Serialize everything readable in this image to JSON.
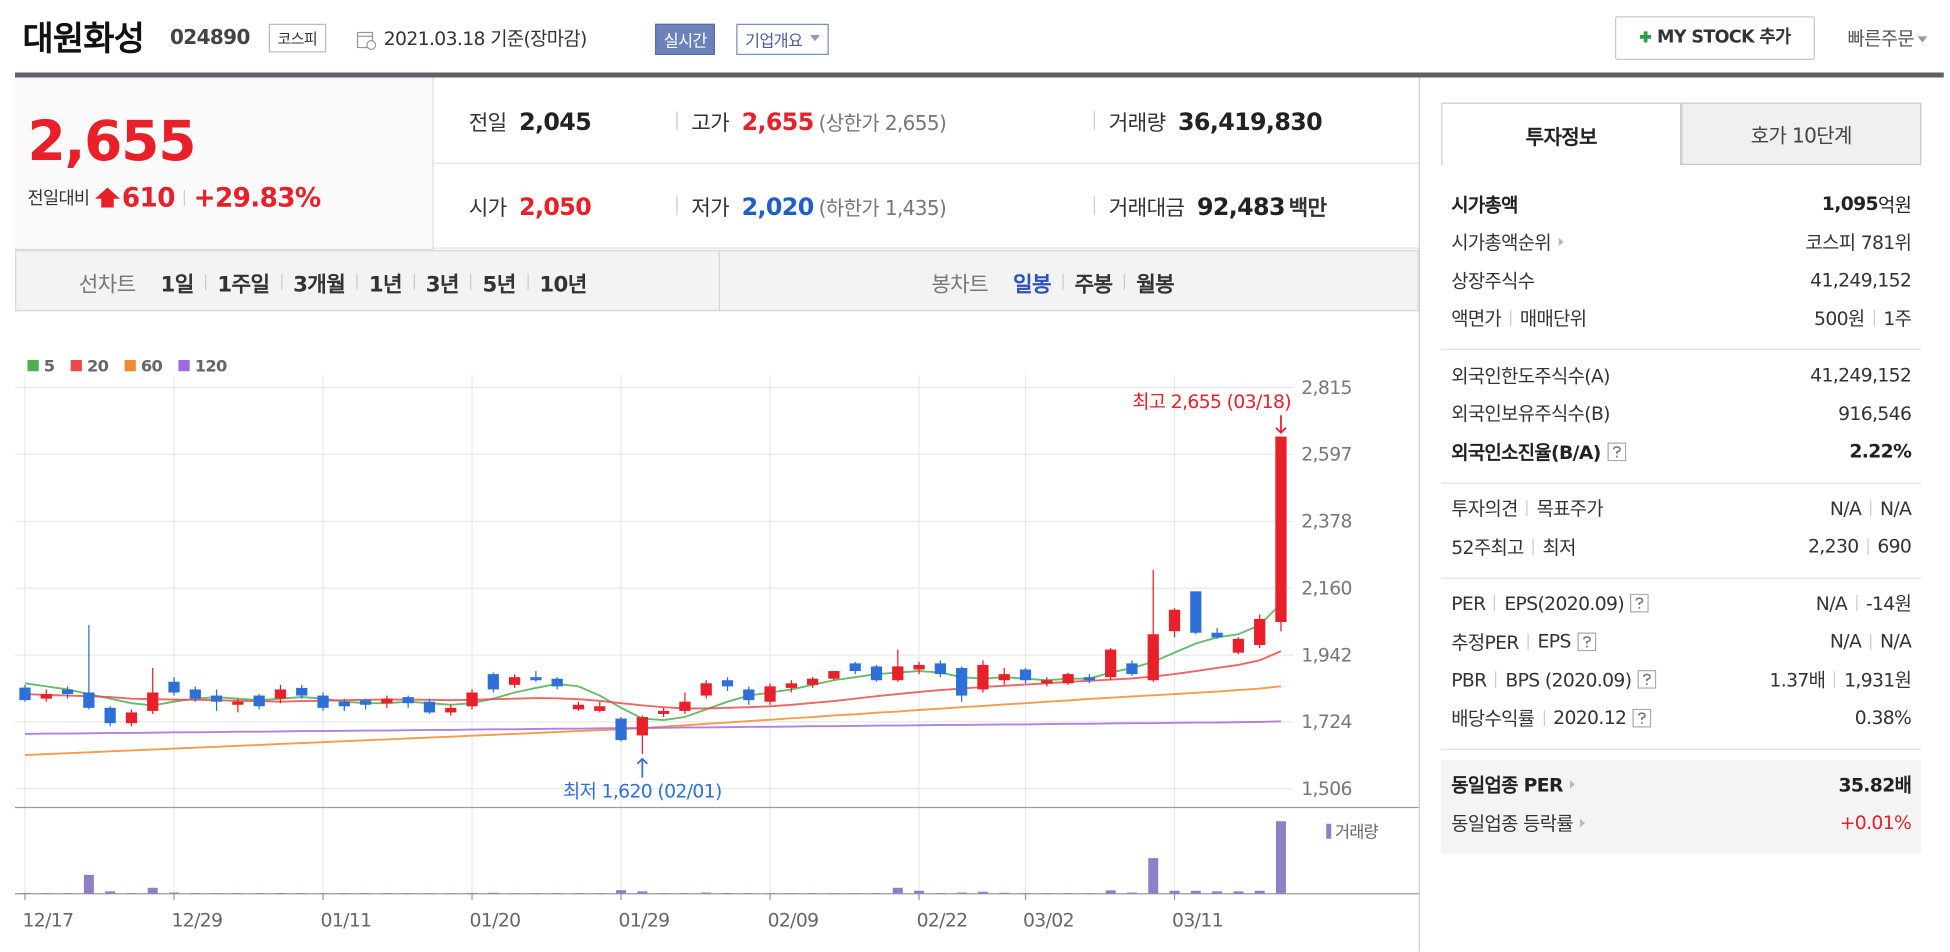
{
  "header": {
    "name": "대원화성",
    "code": "024890",
    "market": "코스피",
    "date": "2021.03.18 기준(장마감)",
    "realtime": "실시간",
    "company": "기업개요",
    "mystock": "MY STOCK 추가",
    "quick_order": "빠른주문"
  },
  "quote": {
    "price": "2,655",
    "change_label": "전일대비",
    "change": "610",
    "change_pct": "+29.83%",
    "rows": [
      [
        {
          "label": "전일",
          "value": "2,045",
          "color": "#222"
        },
        {
          "label": "고가",
          "value": "2,655",
          "color": "#e8202a",
          "note": "(상한가 2,655)"
        },
        {
          "label": "거래량",
          "value": "36,419,830",
          "color": "#222"
        }
      ],
      [
        {
          "label": "시가",
          "value": "2,050",
          "color": "#e8202a"
        },
        {
          "label": "저가",
          "value": "2,020",
          "color": "#1f5fc8",
          "note": "(하한가 1,435)"
        },
        {
          "label": "거래대금",
          "value": "92,483",
          "color": "#222",
          "unit": "백만"
        }
      ]
    ]
  },
  "line_periods": {
    "label": "선차트",
    "items": [
      "1일",
      "1주일",
      "3개월",
      "1년",
      "3년",
      "5년",
      "10년"
    ]
  },
  "candle_periods": {
    "label": "봉차트",
    "items": [
      "일봉",
      "주봉",
      "월봉"
    ],
    "selected_index": 0
  },
  "chart_data": {
    "type": "candlestick",
    "categories": [
      "12/17",
      null,
      null,
      null,
      null,
      null,
      null,
      "12/29",
      null,
      null,
      null,
      null,
      null,
      null,
      "01/11",
      null,
      null,
      null,
      null,
      null,
      null,
      "01/20",
      null,
      null,
      null,
      null,
      null,
      null,
      "01/29",
      null,
      null,
      null,
      null,
      null,
      null,
      "02/09",
      null,
      null,
      null,
      null,
      null,
      null,
      "02/22",
      null,
      null,
      null,
      null,
      "03/02",
      null,
      null,
      null,
      null,
      null,
      null,
      "03/11",
      null,
      null,
      null,
      null,
      null
    ],
    "open": [
      1836,
      1800,
      1830,
      1820,
      1770,
      1720,
      1760,
      1855,
      1830,
      1810,
      1780,
      1810,
      1800,
      1835,
      1810,
      1790,
      1795,
      1785,
      1805,
      1790,
      1755,
      1775,
      1880,
      1845,
      1870,
      1865,
      1765,
      1760,
      1735,
      1680,
      1750,
      1760,
      1810,
      1860,
      1830,
      1790,
      1835,
      1845,
      1865,
      1915,
      1905,
      1860,
      1895,
      1915,
      1900,
      1830,
      1860,
      1895,
      1850,
      1850,
      1870,
      1870,
      1915,
      1860,
      2020,
      2150,
      2015,
      1950,
      1975,
      2050
    ],
    "high": [
      1845,
      1830,
      1840,
      2040,
      1775,
      1765,
      1900,
      1870,
      1840,
      1830,
      1800,
      1815,
      1845,
      1845,
      1820,
      1800,
      1800,
      1810,
      1810,
      1800,
      1780,
      1830,
      1885,
      1880,
      1890,
      1870,
      1790,
      1790,
      1740,
      1745,
      1770,
      1820,
      1860,
      1870,
      1840,
      1850,
      1860,
      1870,
      1890,
      1920,
      1910,
      1960,
      1920,
      1925,
      1905,
      1925,
      1900,
      1900,
      1870,
      1885,
      1880,
      1965,
      1925,
      2220,
      2095,
      2150,
      2030,
      2000,
      2075,
      2655
    ],
    "low": [
      1790,
      1790,
      1800,
      1765,
      1710,
      1710,
      1750,
      1810,
      1790,
      1760,
      1755,
      1765,
      1785,
      1800,
      1760,
      1760,
      1765,
      1770,
      1770,
      1750,
      1745,
      1765,
      1820,
      1835,
      1855,
      1830,
      1760,
      1755,
      1660,
      1620,
      1740,
      1750,
      1800,
      1825,
      1780,
      1780,
      1820,
      1835,
      1860,
      1880,
      1855,
      1855,
      1880,
      1870,
      1790,
      1820,
      1845,
      1850,
      1840,
      1845,
      1850,
      1860,
      1875,
      1855,
      2000,
      2010,
      1995,
      1945,
      1965,
      2020
    ],
    "close": [
      1795,
      1815,
      1815,
      1770,
      1720,
      1755,
      1820,
      1820,
      1800,
      1790,
      1790,
      1775,
      1830,
      1810,
      1770,
      1775,
      1780,
      1800,
      1785,
      1755,
      1770,
      1820,
      1830,
      1870,
      1860,
      1840,
      1780,
      1775,
      1665,
      1740,
      1760,
      1790,
      1850,
      1840,
      1795,
      1840,
      1850,
      1865,
      1890,
      1890,
      1860,
      1905,
      1910,
      1880,
      1810,
      1910,
      1880,
      1860,
      1860,
      1880,
      1860,
      1960,
      1880,
      2010,
      2090,
      2015,
      2000,
      1995,
      2060,
      2655
    ],
    "up_color": "#e8202a",
    "down_color": "#2f6fd8",
    "series": [
      {
        "name": "5",
        "color": "#4caf50",
        "values": [
          1850,
          1840,
          1830,
          1815,
          1800,
          1785,
          1778,
          1790,
          1800,
          1805,
          1800,
          1795,
          1800,
          1805,
          1800,
          1790,
          1785,
          1785,
          1790,
          1785,
          1780,
          1785,
          1800,
          1820,
          1835,
          1848,
          1840,
          1810,
          1770,
          1735,
          1730,
          1740,
          1765,
          1790,
          1810,
          1820,
          1830,
          1845,
          1860,
          1870,
          1880,
          1885,
          1890,
          1885,
          1870,
          1865,
          1870,
          1865,
          1860,
          1865,
          1865,
          1885,
          1900,
          1920,
          1950,
          1980,
          2000,
          2010,
          2040,
          2110
        ]
      },
      {
        "name": "20",
        "color": "#ea4a4a",
        "values": [
          1815,
          1812,
          1810,
          1808,
          1805,
          1800,
          1798,
          1797,
          1796,
          1795,
          1793,
          1792,
          1790,
          1792,
          1793,
          1795,
          1796,
          1797,
          1797,
          1796,
          1795,
          1796,
          1798,
          1800,
          1802,
          1801,
          1798,
          1793,
          1785,
          1778,
          1772,
          1768,
          1768,
          1770,
          1772,
          1775,
          1780,
          1786,
          1792,
          1800,
          1808,
          1815,
          1822,
          1828,
          1833,
          1838,
          1842,
          1846,
          1850,
          1855,
          1858,
          1862,
          1866,
          1872,
          1880,
          1890,
          1900,
          1910,
          1925,
          1955
        ]
      },
      {
        "name": "60",
        "color": "#f28a30",
        "values": [
          1616,
          1619,
          1622,
          1625,
          1628,
          1631,
          1634,
          1637,
          1640,
          1643,
          1646,
          1649,
          1652,
          1655,
          1658,
          1661,
          1664,
          1667,
          1670,
          1673,
          1676,
          1679,
          1682,
          1685,
          1688,
          1691,
          1694,
          1697,
          1700,
          1704,
          1709,
          1713,
          1718,
          1722,
          1727,
          1731,
          1736,
          1740,
          1745,
          1749,
          1754,
          1758,
          1763,
          1767,
          1772,
          1776,
          1781,
          1785,
          1790,
          1794,
          1799,
          1803,
          1807,
          1811,
          1815,
          1819,
          1823,
          1828,
          1833,
          1840
        ]
      },
      {
        "name": "120",
        "color": "#a16ae0",
        "values": [
          1685,
          1686,
          1686,
          1687,
          1688,
          1688,
          1689,
          1690,
          1690,
          1691,
          1692,
          1692,
          1693,
          1694,
          1694,
          1695,
          1696,
          1696,
          1697,
          1698,
          1698,
          1699,
          1700,
          1700,
          1701,
          1702,
          1702,
          1703,
          1704,
          1704,
          1705,
          1706,
          1706,
          1707,
          1708,
          1708,
          1709,
          1710,
          1710,
          1711,
          1712,
          1712,
          1713,
          1714,
          1714,
          1715,
          1716,
          1716,
          1717,
          1718,
          1718,
          1719,
          1720,
          1720,
          1721,
          1722,
          1722,
          1723,
          1724,
          1726
        ]
      }
    ],
    "volume": {
      "name": "거래량",
      "color": "#8f7fc6",
      "values": [
        400000,
        300000,
        300000,
        9500000,
        1200000,
        400000,
        3000000,
        600000,
        400000,
        300000,
        300000,
        300000,
        400000,
        300000,
        300000,
        300000,
        300000,
        300000,
        300000,
        300000,
        300000,
        400000,
        500000,
        300000,
        300000,
        300000,
        300000,
        300000,
        1800000,
        1200000,
        300000,
        300000,
        600000,
        400000,
        300000,
        300000,
        300000,
        300000,
        300000,
        300000,
        300000,
        3000000,
        1500000,
        400000,
        600000,
        1000000,
        500000,
        300000,
        300000,
        300000,
        300000,
        1700000,
        600000,
        17900000,
        1500000,
        1500000,
        1200000,
        1200000,
        1500000,
        36419830
      ]
    },
    "ylim": [
      1506,
      2815
    ],
    "yticks": [
      {
        "value": 2815,
        "label": "2,815"
      },
      {
        "value": 2597,
        "label": "2,597"
      },
      {
        "value": 2378,
        "label": "2,378"
      },
      {
        "value": 2160,
        "label": "2,160"
      },
      {
        "value": 1942,
        "label": "1,942"
      },
      {
        "value": 1724,
        "label": "1,724"
      },
      {
        "value": 1506,
        "label": "1,506"
      }
    ],
    "grid": true,
    "high_annotation": "최고 2,655 (03/18)",
    "low_annotation": "최저 1,620 (02/01)"
  },
  "info": {
    "tabs": [
      "투자정보",
      "호가 10단계"
    ],
    "selected_tab": 0,
    "groups": [
      {
        "rows": [
          {
            "labels": [
              "시가총액"
            ],
            "values": [
              "1,095"
            ],
            "unit": "억원",
            "bold": true
          },
          {
            "labels": [
              "시가총액순위"
            ],
            "values": [
              "코스피 781위"
            ],
            "arrow": true
          },
          {
            "labels": [
              "상장주식수"
            ],
            "values": [
              "41,249,152"
            ]
          },
          {
            "labels": [
              "액면가",
              "매매단위"
            ],
            "values": [
              "500원",
              "1주"
            ]
          }
        ]
      },
      {
        "rows": [
          {
            "labels": [
              "외국인한도주식수(A)"
            ],
            "values": [
              "41,249,152"
            ]
          },
          {
            "labels": [
              "외국인보유주식수(B)"
            ],
            "values": [
              "916,546"
            ]
          },
          {
            "labels": [
              "외국인소진율(B/A)"
            ],
            "values": [
              "2.22%"
            ],
            "bold": true,
            "help": true
          }
        ]
      },
      {
        "rows": [
          {
            "labels": [
              "투자의견",
              "목표주가"
            ],
            "values": [
              "N/A",
              "N/A"
            ]
          },
          {
            "labels": [
              "52주최고",
              "최저"
            ],
            "values": [
              "2,230",
              "690"
            ]
          }
        ]
      },
      {
        "rows": [
          {
            "labels": [
              "PER",
              "EPS(2020.09)"
            ],
            "values": [
              "N/A",
              "-14원"
            ],
            "help": true
          },
          {
            "labels": [
              "추정PER",
              "EPS"
            ],
            "values": [
              "N/A",
              "N/A"
            ],
            "help": true
          },
          {
            "labels": [
              "PBR",
              "BPS (2020.09)"
            ],
            "values": [
              "1.37배",
              "1,931원"
            ],
            "help": true
          },
          {
            "labels": [
              "배당수익률",
              "2020.12"
            ],
            "values": [
              "0.38%"
            ],
            "help": true
          }
        ]
      },
      {
        "shaded": true,
        "rows": [
          {
            "labels": [
              "동일업종 PER"
            ],
            "values": [
              "35.82배"
            ],
            "bold": true,
            "arrow": true
          },
          {
            "labels": [
              "동일업종 등락률"
            ],
            "values": [
              "+0.01%"
            ],
            "arrow": true,
            "color": "#e8202a"
          }
        ]
      }
    ]
  }
}
